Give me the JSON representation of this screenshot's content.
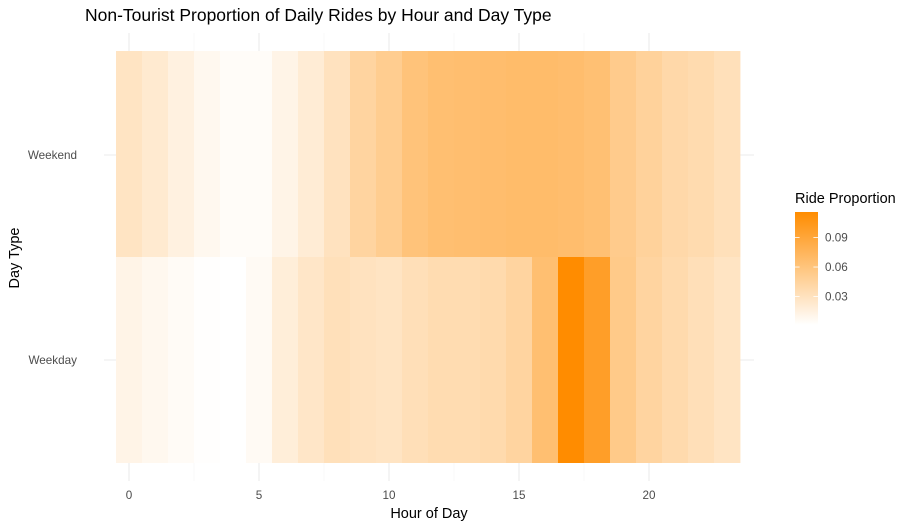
{
  "chart_data": {
    "type": "heatmap",
    "title": "Non-Tourist Proportion of Daily Rides by Hour and Day Type",
    "xlabel": "Hour of Day",
    "ylabel": "Day Type",
    "x": [
      0,
      1,
      2,
      3,
      4,
      5,
      6,
      7,
      8,
      9,
      10,
      11,
      12,
      13,
      14,
      15,
      16,
      17,
      18,
      19,
      20,
      21,
      22,
      23
    ],
    "x_ticks": [
      0,
      5,
      10,
      15,
      20
    ],
    "xlim": [
      -0.5,
      23.5
    ],
    "y_categories": [
      "Weekday",
      "Weekend"
    ],
    "series": [
      {
        "name": "Weekend",
        "values": [
          0.028,
          0.022,
          0.015,
          0.008,
          0.004,
          0.004,
          0.012,
          0.02,
          0.03,
          0.044,
          0.051,
          0.061,
          0.065,
          0.066,
          0.067,
          0.068,
          0.068,
          0.067,
          0.064,
          0.053,
          0.046,
          0.04,
          0.037,
          0.032
        ]
      },
      {
        "name": "Weekday",
        "values": [
          0.012,
          0.008,
          0.005,
          0.002,
          0.001,
          0.006,
          0.018,
          0.026,
          0.032,
          0.03,
          0.028,
          0.033,
          0.036,
          0.036,
          0.038,
          0.044,
          0.065,
          0.116,
          0.098,
          0.054,
          0.044,
          0.038,
          0.033,
          0.028
        ]
      }
    ],
    "legend": {
      "title": "Ride Proportion",
      "position": "right",
      "ticks": [
        0.03,
        0.06,
        0.09
      ],
      "tick_labels": [
        "0.03",
        "0.06",
        "0.09"
      ],
      "range": [
        0.001,
        0.116
      ],
      "low_color": "#ffffff",
      "high_color": "#ff8c00"
    },
    "grid": true,
    "theme": "minimal"
  }
}
